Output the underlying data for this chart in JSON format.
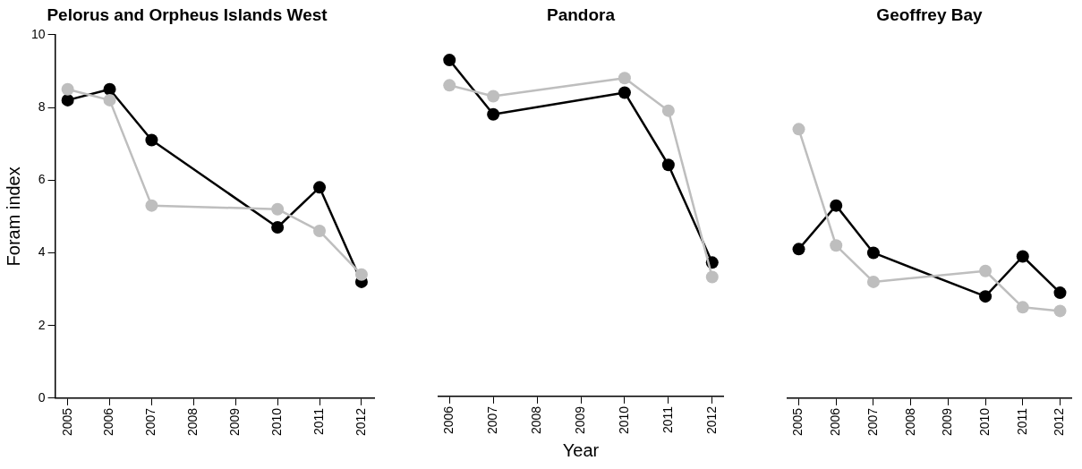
{
  "chart_data": [
    {
      "type": "line",
      "title": "Pelorus and Orpheus Islands West",
      "ylabel": "Foram index",
      "x": [
        2005,
        2006,
        2007,
        2010,
        2011,
        2012
      ],
      "xlim": [
        2004.7,
        2012.3
      ],
      "xticks": [
        2005,
        2006,
        2007,
        2008,
        2009,
        2010,
        2011,
        2012
      ],
      "ylim": [
        0,
        10
      ],
      "yticks": [
        0,
        2,
        4,
        6,
        8,
        10
      ],
      "grid": false,
      "legend": false,
      "marker": "circle",
      "series": [
        {
          "color": "#bebebe",
          "values": [
            8.5,
            8.2,
            5.3,
            5.2,
            4.6,
            3.4
          ]
        },
        {
          "color": "#000000",
          "values": [
            8.2,
            8.5,
            7.1,
            4.7,
            5.8,
            3.2
          ]
        }
      ]
    },
    {
      "type": "line",
      "title": "Pandora",
      "xlabel": "Year",
      "x": [
        2006,
        2007,
        2010,
        2011,
        2012
      ],
      "xlim": [
        2005.75,
        2012.25
      ],
      "xticks": [
        2006,
        2007,
        2008,
        2009,
        2010,
        2011,
        2012
      ],
      "ylim": [
        0,
        10
      ],
      "yticks": [
        0,
        2,
        4,
        6,
        8,
        10
      ],
      "tick_labels": "x",
      "grid": false,
      "legend": false,
      "marker": "circle",
      "series": [
        {
          "color": "#bebebe",
          "values": [
            8.6,
            8.3,
            8.8,
            7.9,
            3.3
          ]
        },
        {
          "color": "#000000",
          "values": [
            9.3,
            7.8,
            8.4,
            6.4,
            3.7
          ]
        }
      ]
    },
    {
      "type": "line",
      "title": "Geoffrey Bay",
      "x": [
        2005,
        2006,
        2007,
        2010,
        2011,
        2012
      ],
      "xlim": [
        2004.7,
        2012.3
      ],
      "xticks": [
        2005,
        2006,
        2007,
        2008,
        2009,
        2010,
        2011,
        2012
      ],
      "ylim": [
        0,
        10
      ],
      "yticks": [
        0,
        2,
        4,
        6,
        8,
        10
      ],
      "tick_labels": "x",
      "grid": false,
      "legend": false,
      "marker": "circle",
      "series": [
        {
          "color": "#bebebe",
          "values": [
            7.4,
            4.2,
            3.2,
            3.5,
            2.5,
            2.4
          ]
        },
        {
          "color": "#000000",
          "values": [
            4.1,
            5.3,
            4.0,
            2.8,
            3.9,
            2.9
          ]
        }
      ]
    }
  ]
}
